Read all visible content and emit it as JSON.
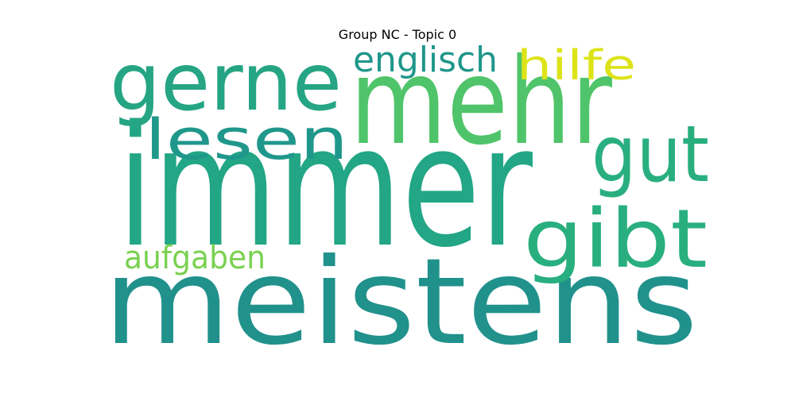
{
  "chart_data": {
    "type": "wordcloud",
    "title": "Group NC - Topic 0",
    "words": [
      {
        "text": "immer",
        "color": "#22a685"
      },
      {
        "text": "meistens",
        "color": "#21918c"
      },
      {
        "text": "mehr",
        "color": "#50c46a"
      },
      {
        "text": "gerne",
        "color": "#25a584"
      },
      {
        "text": "gibt",
        "color": "#29af7f"
      },
      {
        "text": "gut",
        "color": "#29af7f"
      },
      {
        "text": "lesen",
        "color": "#1f978b"
      },
      {
        "text": "englisch",
        "color": "#1f968b"
      },
      {
        "text": "hilfe",
        "color": "#dde318"
      },
      {
        "text": "aufgaben",
        "color": "#7ad151"
      }
    ],
    "background": "#ffffff",
    "colormap": "viridis"
  }
}
